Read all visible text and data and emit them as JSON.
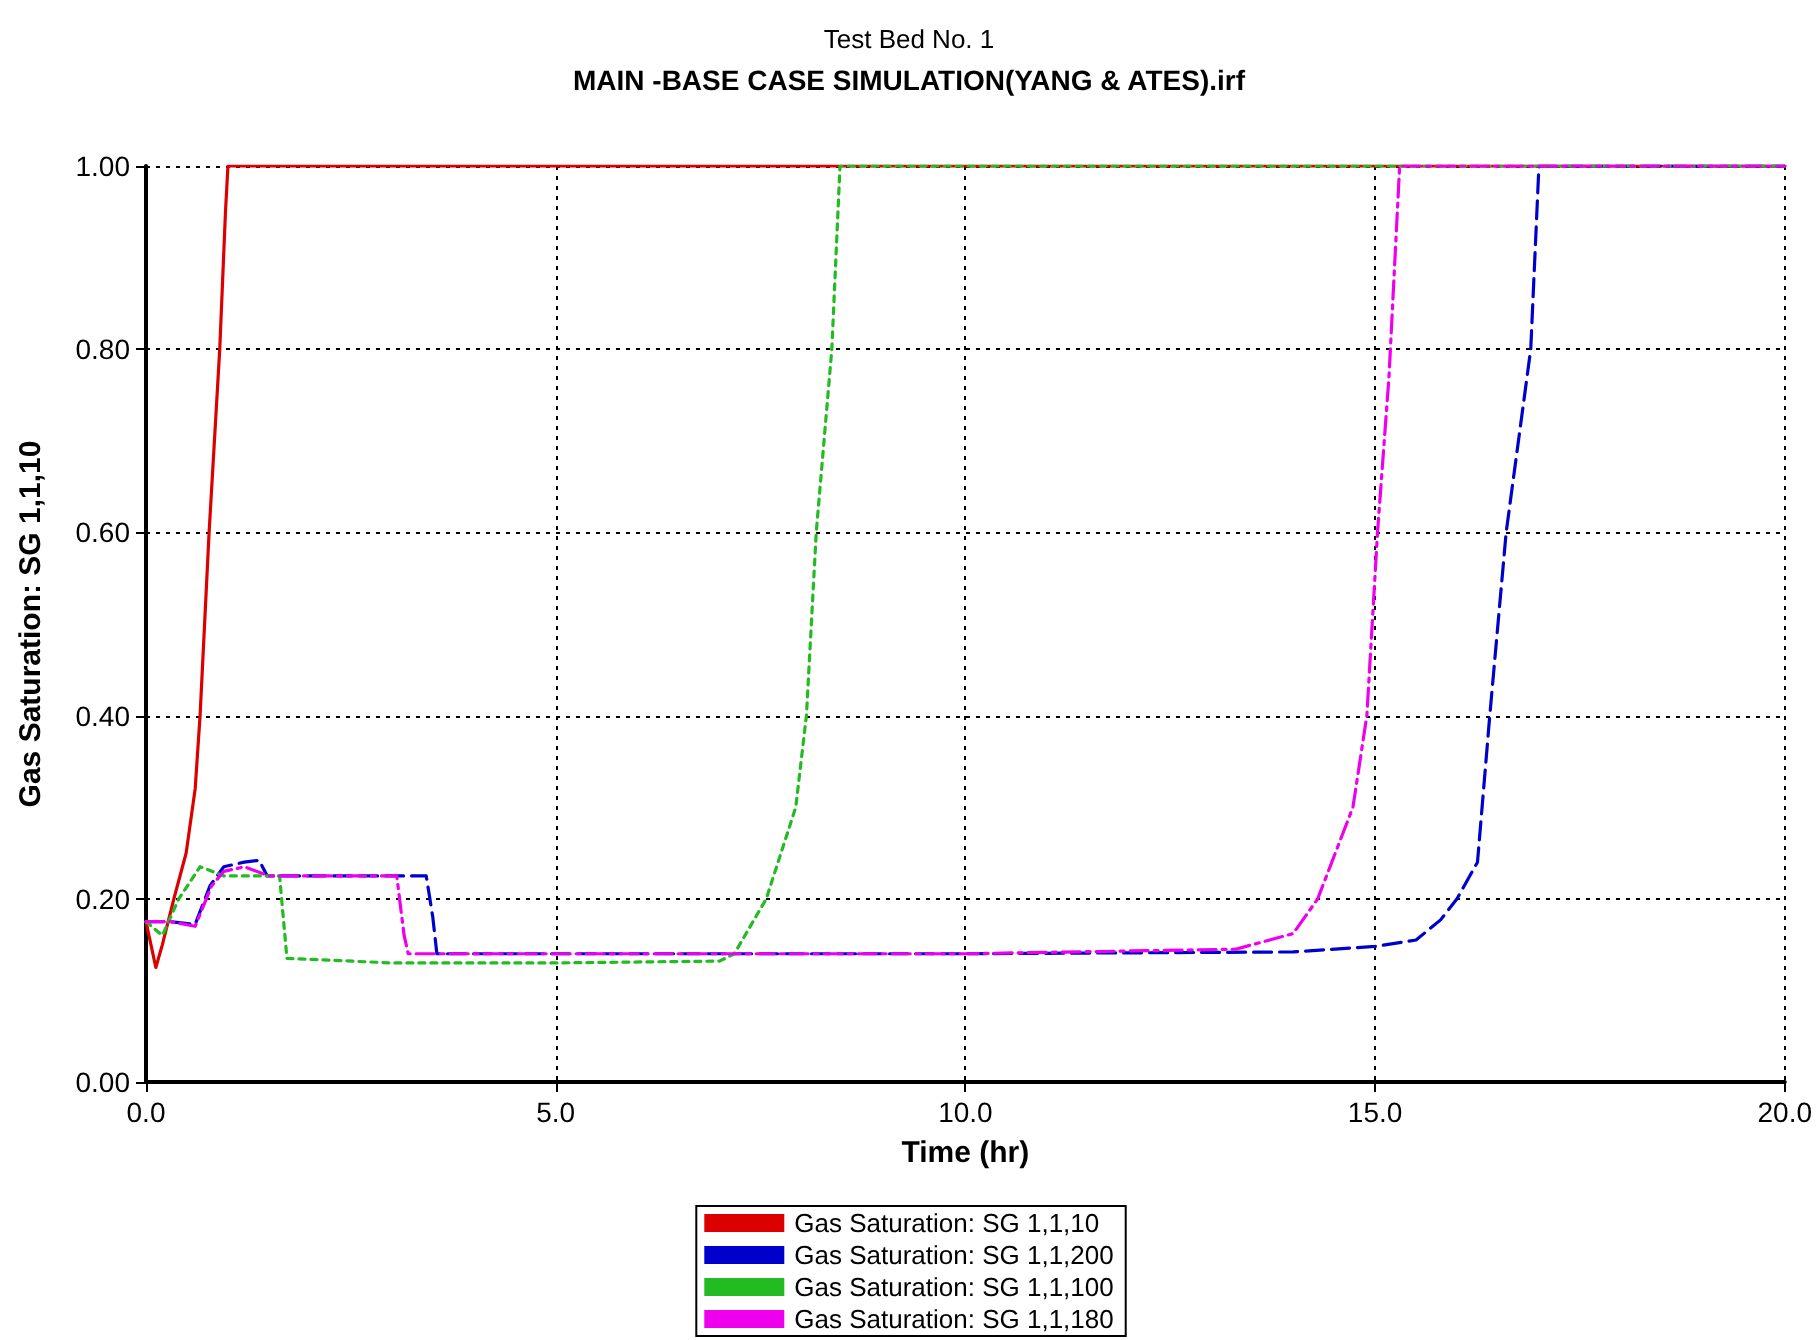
{
  "chart_data": {
    "type": "line",
    "title": "Test Bed No. 1",
    "subtitle": "MAIN -BASE CASE SIMULATION(YANG & ATES).irf",
    "xlabel": "Time (hr)",
    "ylabel": "Gas Saturation: SG 1,1,10",
    "xlim": [
      0,
      20
    ],
    "xticks": [
      {
        "value": 0,
        "label": "0.0"
      },
      {
        "value": 5,
        "label": "5.0"
      },
      {
        "value": 10,
        "label": "10.0"
      },
      {
        "value": 15,
        "label": "15.0"
      },
      {
        "value": 20,
        "label": "20.0"
      }
    ],
    "ylim": [
      0,
      1
    ],
    "yticks": [
      {
        "value": 0,
        "label": "0.00"
      },
      {
        "value": 0.2,
        "label": "0.20"
      },
      {
        "value": 0.4,
        "label": "0.40"
      },
      {
        "value": 0.6,
        "label": "0.60"
      },
      {
        "value": 0.8,
        "label": "0.80"
      },
      {
        "value": 1,
        "label": "1.00"
      }
    ],
    "grid": true,
    "legend": "bottom",
    "marker": "none",
    "series": [
      {
        "name": "Gas Saturation: SG 1,1,10",
        "color": "#dd0000",
        "line_style": "solid",
        "x": [
          0,
          0.06,
          0.12,
          0.2,
          0.34,
          0.49,
          0.6,
          0.66,
          0.77,
          0.9,
          0.97,
          1.0,
          20
        ],
        "values": [
          0.175,
          0.15,
          0.125,
          0.15,
          0.2,
          0.25,
          0.32,
          0.4,
          0.6,
          0.8,
          0.95,
          1.0,
          1.0
        ]
      },
      {
        "name": "Gas Saturation: SG 1,1,200",
        "color": "#0000cc",
        "line_style": "dashed",
        "x": [
          0,
          0.3,
          0.6,
          0.78,
          0.95,
          1.2,
          1.38,
          1.48,
          2.5,
          3.42,
          3.5,
          3.55,
          5,
          10,
          14,
          15,
          15.5,
          15.8,
          16.0,
          16.25,
          16.4,
          16.6,
          16.9,
          17.0,
          20
        ],
        "values": [
          0.175,
          0.175,
          0.172,
          0.214,
          0.235,
          0.24,
          0.242,
          0.225,
          0.225,
          0.225,
          0.18,
          0.14,
          0.14,
          0.14,
          0.142,
          0.148,
          0.155,
          0.177,
          0.2,
          0.24,
          0.4,
          0.6,
          0.8,
          1.0,
          1.0
        ]
      },
      {
        "name": "Gas Saturation: SG 1,1,100",
        "color": "#22bb22",
        "line_style": "dotted",
        "x": [
          0,
          0.2,
          0.4,
          0.66,
          0.95,
          1.63,
          1.72,
          3,
          5,
          7.0,
          7.18,
          7.57,
          7.93,
          8.06,
          8.18,
          8.37,
          8.47,
          20
        ],
        "values": [
          0.175,
          0.16,
          0.2,
          0.235,
          0.225,
          0.225,
          0.135,
          0.13,
          0.13,
          0.132,
          0.14,
          0.2,
          0.3,
          0.4,
          0.6,
          0.8,
          1.0,
          1.0
        ]
      },
      {
        "name": "Gas Saturation: SG 1,1,180",
        "color": "#ee00ee",
        "line_style": "dashdot",
        "x": [
          0,
          0.3,
          0.6,
          0.8,
          0.95,
          1.2,
          1.5,
          2.5,
          3.06,
          3.15,
          3.2,
          5,
          10,
          13.3,
          14.0,
          14.3,
          14.73,
          14.9,
          15.03,
          15.17,
          15.3,
          20
        ],
        "values": [
          0.175,
          0.175,
          0.17,
          0.214,
          0.23,
          0.235,
          0.225,
          0.225,
          0.225,
          0.16,
          0.14,
          0.14,
          0.14,
          0.145,
          0.162,
          0.2,
          0.3,
          0.4,
          0.6,
          0.77,
          1.0,
          1.0
        ]
      }
    ]
  }
}
